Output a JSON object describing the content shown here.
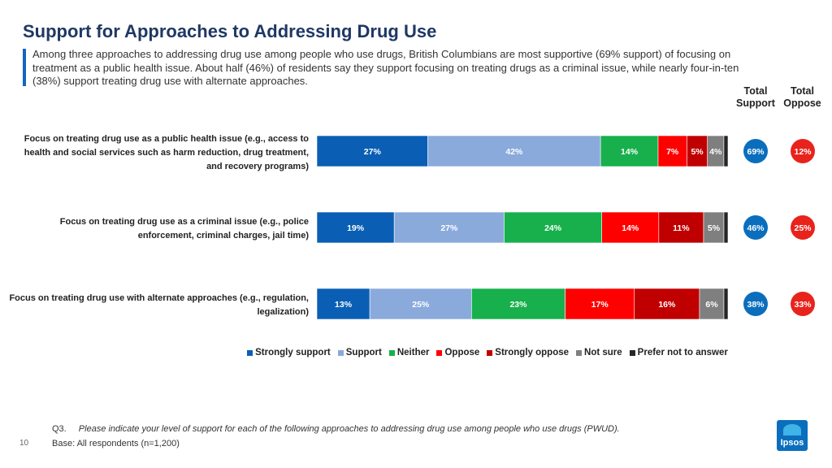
{
  "title": "Support for Approaches to Addressing Drug Use",
  "subtitle": "Among three approaches to addressing drug use among people who use drugs, British Columbians are most supportive (69% support) of focusing on treatment as a public health issue. About half (46%) of residents say they support focusing on treating drugs as a criminal issue, while nearly four-in-ten (38%) support treating drug use with alternate approaches.",
  "columns": {
    "total_support": "Total Support",
    "total_oppose": "Total Oppose"
  },
  "chart_data": {
    "type": "bar",
    "orientation": "horizontal-stacked",
    "title": "Support for Approaches to Addressing Drug Use",
    "categories": [
      "Focus on treating drug use as a public health issue (e.g., access to health and social services such as harm reduction, drug treatment, and recovery programs)",
      "Focus on treating drug use as a criminal issue (e.g., police enforcement, criminal charges, jail time)",
      "Focus on treating drug use with alternate approaches (e.g., regulation, legalization)"
    ],
    "series": [
      {
        "name": "Strongly support",
        "color": "#0a5fb4",
        "values": [
          27,
          19,
          13
        ],
        "label_color": "#ffffff"
      },
      {
        "name": "Support",
        "color": "#8aaadc",
        "values": [
          42,
          27,
          25
        ],
        "label_color": "#ffffff"
      },
      {
        "name": "Neither",
        "color": "#17b04c",
        "values": [
          14,
          24,
          23
        ],
        "label_color": "#ffffff"
      },
      {
        "name": "Oppose",
        "color": "#ff0000",
        "values": [
          7,
          14,
          17
        ],
        "label_color": "#ffffff"
      },
      {
        "name": "Strongly oppose",
        "color": "#c00000",
        "values": [
          5,
          11,
          16
        ],
        "label_color": "#ffffff"
      },
      {
        "name": "Not sure",
        "color": "#7f7f7f",
        "values": [
          4,
          5,
          6
        ],
        "label_color": "#ffffff"
      },
      {
        "name": "Prefer not to answer",
        "color": "#262626",
        "values": [
          1,
          1,
          1
        ],
        "label_color": null
      }
    ],
    "total_support": [
      69,
      46,
      38
    ],
    "total_oppose": [
      12,
      25,
      33
    ],
    "support_color": "#0a6ebd",
    "oppose_color": "#e8231c",
    "legend_position": "bottom"
  },
  "footer": {
    "question_label": "Q3.",
    "question_text": "Please indicate your level of support for each of the following approaches to addressing drug use among people who use drugs (PWUD).",
    "base": "Base: All respondents (n=1,200)"
  },
  "page_number": "10",
  "logo_text": "Ipsos"
}
